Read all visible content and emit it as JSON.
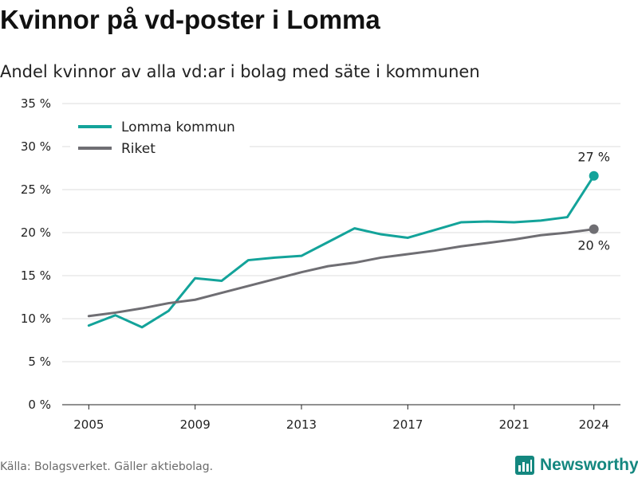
{
  "title": "Kvinnor på vd-poster i Lomma",
  "subtitle": "Andel kvinnor av alla vd:ar i bolag med säte i kommunen",
  "source": "Källa: Bolagsverket. Gäller aktiebolag.",
  "brand": {
    "name": "Newsworthy",
    "icon": "newsworthy-logo-icon"
  },
  "colors": {
    "accent": "#13a39a",
    "secondary": "#6f6e73",
    "grid": "#dddddd",
    "brand": "#14877f"
  },
  "chart_data": {
    "type": "line",
    "title": "Kvinnor på vd-poster i Lomma",
    "xlabel": "",
    "ylabel": "",
    "x_ticks": [
      "2005",
      "2009",
      "2013",
      "2017",
      "2021",
      "2024"
    ],
    "y_ticks": [
      "0 %",
      "5 %",
      "10 %",
      "15 %",
      "20 %",
      "25 %",
      "30 %",
      "35 %"
    ],
    "ylim": [
      0,
      35
    ],
    "xlim": [
      2004,
      2025
    ],
    "grid": true,
    "legend_position": "top-left",
    "series": [
      {
        "name": "Lomma kommun",
        "color": "#13a39a",
        "x": [
          2005,
          2006,
          2007,
          2008,
          2009,
          2010,
          2011,
          2012,
          2013,
          2014,
          2015,
          2016,
          2017,
          2018,
          2019,
          2020,
          2021,
          2022,
          2023,
          2024
        ],
        "values": [
          9.2,
          10.4,
          9.0,
          10.9,
          14.7,
          14.4,
          16.8,
          17.1,
          17.3,
          18.9,
          20.5,
          19.8,
          19.4,
          20.3,
          21.2,
          21.3,
          21.2,
          21.4,
          21.8,
          26.6
        ],
        "end_label": "27 %"
      },
      {
        "name": "Riket",
        "color": "#6f6e73",
        "x": [
          2005,
          2006,
          2007,
          2008,
          2009,
          2010,
          2011,
          2012,
          2013,
          2014,
          2015,
          2016,
          2017,
          2018,
          2019,
          2020,
          2021,
          2022,
          2023,
          2024
        ],
        "values": [
          10.3,
          10.7,
          11.2,
          11.8,
          12.2,
          13.0,
          13.8,
          14.6,
          15.4,
          16.1,
          16.5,
          17.1,
          17.5,
          17.9,
          18.4,
          18.8,
          19.2,
          19.7,
          20.0,
          20.4
        ],
        "end_label": "20 %"
      }
    ]
  }
}
